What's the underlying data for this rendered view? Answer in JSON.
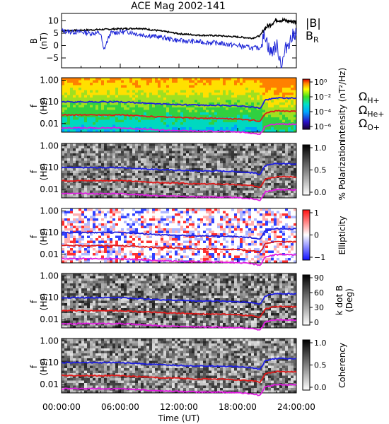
{
  "title": "ACE Mag 2002-141",
  "xlabel": "Time (UT)",
  "time_ticks": [
    "00:00:00",
    "06:00:00",
    "12:00:00",
    "18:00:00",
    "24:00:00"
  ],
  "colors": {
    "B_total": "#000000",
    "B_R": "#1a22d6",
    "H": "#1e1ee0",
    "He": "#e01a1a",
    "O": "#e01ae0"
  },
  "legend_b": {
    "total": "|B|",
    "radial": "B",
    "radial_sub": "R"
  },
  "legend_gyro": [
    {
      "label": "Ω",
      "sub": "H+",
      "color": "#1e1ee0"
    },
    {
      "label": "Ω",
      "sub": "He+",
      "color": "#e01a1a"
    },
    {
      "label": "Ω",
      "sub": "O+",
      "color": "#e01ae0"
    }
  ],
  "chart_data": [
    {
      "type": "line",
      "ylabel_top": "B",
      "ylabel_bottom": "(nT)",
      "xlim_hours": [
        0,
        24
      ],
      "ylim": [
        -9,
        13
      ],
      "yticks": [
        "10",
        "5",
        "0",
        "−5"
      ],
      "ytick_values": [
        10,
        5,
        0,
        -5
      ],
      "series": [
        {
          "name": "|B|",
          "x_hours": [
            0,
            2,
            4,
            6,
            8,
            10,
            12,
            14,
            16,
            18,
            19.5,
            20.3,
            20.8,
            21.5,
            22,
            23,
            24
          ],
          "values": [
            6,
            6.2,
            6.5,
            6.8,
            7,
            6,
            4.8,
            4.2,
            4,
            3.5,
            3,
            4,
            7,
            9,
            10.5,
            10,
            9.5
          ]
        },
        {
          "name": "B_R",
          "x_hours": [
            0,
            1,
            2,
            3,
            4,
            4.3,
            5,
            6,
            7,
            8,
            10,
            12,
            14,
            16,
            18,
            19.5,
            20.3,
            20.8,
            21.3,
            22,
            22.5,
            23,
            24
          ],
          "values": [
            6,
            5.5,
            5.5,
            5,
            5,
            -2,
            5,
            5.5,
            5.5,
            4.5,
            3.5,
            2,
            1.5,
            1,
            0,
            -1,
            -1,
            5,
            -3,
            0,
            -8,
            0,
            6
          ]
        }
      ]
    },
    {
      "type": "heatmap",
      "name": "intensity",
      "ylabel_top": "f",
      "ylabel_bottom": "(Hz)",
      "ylim_log": [
        0.004,
        1.3
      ],
      "yticks": [
        "1.00",
        "0.10",
        "0.01"
      ],
      "ytick_values": [
        1,
        0.1,
        0.01
      ],
      "colorbar_label": "Intensity (nT²/Hz)",
      "colorbar_ticks": [
        "10⁰",
        "10⁻²",
        "10⁻⁴",
        "10⁻⁶"
      ]
    },
    {
      "type": "heatmap",
      "name": "polarization",
      "ylabel_top": "f",
      "ylabel_bottom": "(Hz)",
      "yticks": [
        "1.00",
        "0.10",
        "0.01"
      ],
      "colorbar_label": "% Polarization",
      "colorbar_ticks": [
        "1.0",
        "0.5",
        "0.0"
      ]
    },
    {
      "type": "heatmap",
      "name": "ellipticity",
      "ylabel_top": "f",
      "ylabel_bottom": "(Hz)",
      "yticks": [
        "1.00",
        "0.10",
        "0.01"
      ],
      "colorbar_label": "Ellipticity",
      "colorbar_ticks": [
        "1",
        "0",
        "−1"
      ]
    },
    {
      "type": "heatmap",
      "name": "kdotb",
      "ylabel_top": "f",
      "ylabel_bottom": "(Hz)",
      "yticks": [
        "1.00",
        "0.10",
        "0.01"
      ],
      "colorbar_label": "k dot B (Deg)",
      "colorbar_label_lines": [
        "k dot B",
        "(Deg)"
      ],
      "colorbar_ticks": [
        "90",
        "60",
        "30",
        "0"
      ]
    },
    {
      "type": "heatmap",
      "name": "coherency",
      "ylabel_top": "f",
      "ylabel_bottom": "(Hz)",
      "yticks": [
        "1.00",
        "0.10",
        "0.01"
      ],
      "colorbar_label": "Coherency",
      "colorbar_ticks": [
        "1.0",
        "0.5",
        "0.0"
      ]
    }
  ],
  "gyrofrequency_hz": {
    "x_hours": [
      0,
      2,
      4,
      6,
      8,
      10,
      12,
      14,
      16,
      18,
      19.5,
      20.3,
      20.6,
      20.8,
      21.5,
      22,
      23,
      24
    ],
    "H+": [
      0.1,
      0.1,
      0.1,
      0.1,
      0.09,
      0.08,
      0.075,
      0.07,
      0.07,
      0.065,
      0.058,
      0.05,
      0.08,
      0.12,
      0.14,
      0.155,
      0.15,
      0.15
    ],
    "He+": [
      0.025,
      0.025,
      0.025,
      0.025,
      0.0225,
      0.02,
      0.019,
      0.0175,
      0.0175,
      0.016,
      0.0145,
      0.0125,
      0.02,
      0.03,
      0.035,
      0.039,
      0.0375,
      0.0375
    ],
    "O+": [
      0.0063,
      0.0063,
      0.0063,
      0.0063,
      0.0056,
      0.005,
      0.0047,
      0.0044,
      0.0044,
      0.0041,
      0.0036,
      0.0031,
      0.005,
      0.0075,
      0.0088,
      0.0097,
      0.0094,
      0.0094
    ]
  }
}
